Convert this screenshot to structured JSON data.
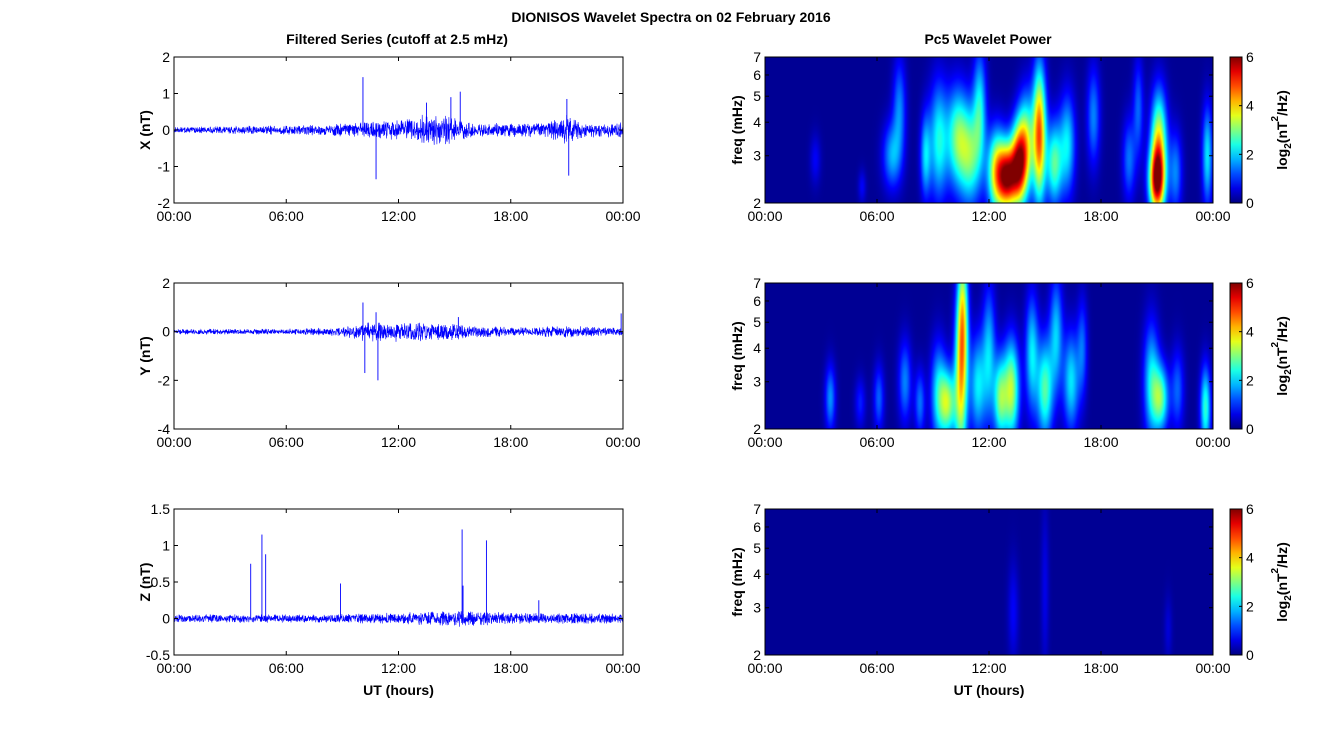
{
  "figure": {
    "title": "DIONISOS Wavelet Spectra on 02 February 2016",
    "left_title": "Filtered Series (cutoff at 2.5 mHz)",
    "right_title": "Pc5 Wavelet Power",
    "xlabel": "UT (hours)"
  },
  "chart_data": [
    {
      "id": "x-series",
      "type": "line",
      "ylabel": "X (nT)",
      "xlim": [
        0,
        24
      ],
      "ylim": [
        -2,
        2
      ],
      "xticks": [
        "00:00",
        "06:00",
        "12:00",
        "18:00",
        "00:00"
      ],
      "yticks": [
        "2",
        "1",
        "0",
        "-1",
        "-2"
      ],
      "color": "#0000ff",
      "series": [
        {
          "values_envelope": [
            [
              0,
              0.08
            ],
            [
              4,
              0.12
            ],
            [
              8,
              0.15
            ],
            [
              10,
              0.22
            ],
            [
              12,
              0.3
            ],
            [
              13.5,
              0.45
            ],
            [
              15,
              0.4
            ],
            [
              16,
              0.2
            ],
            [
              20,
              0.2
            ],
            [
              21,
              0.45
            ],
            [
              22,
              0.2
            ],
            [
              24,
              0.22
            ]
          ],
          "spikes": [
            [
              10.1,
              1.45
            ],
            [
              10.8,
              -1.35
            ],
            [
              13.5,
              0.75
            ],
            [
              14.8,
              0.9
            ],
            [
              15.3,
              1.05
            ],
            [
              21.0,
              0.85
            ],
            [
              21.1,
              -1.25
            ]
          ]
        }
      ]
    },
    {
      "id": "y-series",
      "type": "line",
      "ylabel": "Y (nT)",
      "xlim": [
        0,
        24
      ],
      "ylim": [
        -4,
        2
      ],
      "xticks": [
        "00:00",
        "06:00",
        "12:00",
        "18:00",
        "00:00"
      ],
      "yticks": [
        "2",
        "0",
        "-2",
        "-4"
      ],
      "color": "#0000ff",
      "series": [
        {
          "values_envelope": [
            [
              0,
              0.12
            ],
            [
              6,
              0.12
            ],
            [
              9,
              0.2
            ],
            [
              10.5,
              0.45
            ],
            [
              13.5,
              0.4
            ],
            [
              15,
              0.35
            ],
            [
              18,
              0.18
            ],
            [
              21,
              0.25
            ],
            [
              24,
              0.15
            ]
          ],
          "spikes": [
            [
              10.1,
              1.2
            ],
            [
              10.2,
              -1.7
            ],
            [
              10.8,
              0.8
            ],
            [
              10.9,
              -2.0
            ],
            [
              15.2,
              0.6
            ],
            [
              23.9,
              0.75
            ]
          ]
        }
      ]
    },
    {
      "id": "z-series",
      "type": "line",
      "ylabel": "Z (nT)",
      "xlim": [
        0,
        24
      ],
      "ylim": [
        -0.5,
        1.5
      ],
      "xticks": [
        "00:00",
        "06:00",
        "12:00",
        "18:00",
        "00:00"
      ],
      "yticks": [
        "1.5",
        "1",
        "0.5",
        "0",
        "-0.5"
      ],
      "xlabel": "UT (hours)",
      "color": "#0000ff",
      "series": [
        {
          "values_envelope": [
            [
              0,
              0.06
            ],
            [
              8,
              0.06
            ],
            [
              12,
              0.08
            ],
            [
              15,
              0.12
            ],
            [
              18,
              0.08
            ],
            [
              24,
              0.07
            ]
          ],
          "spikes": [
            [
              4.1,
              0.75
            ],
            [
              4.7,
              1.15
            ],
            [
              4.9,
              0.88
            ],
            [
              8.9,
              0.48
            ],
            [
              15.4,
              1.22
            ],
            [
              15.45,
              0.45
            ],
            [
              16.7,
              1.07
            ],
            [
              19.5,
              0.25
            ]
          ]
        }
      ]
    },
    {
      "id": "x-wavelet",
      "type": "heatmap",
      "ylabel": "freq (mHz)",
      "xlim": [
        0,
        24
      ],
      "ylim": [
        2,
        7
      ],
      "yscale": "log",
      "xticks": [
        "00:00",
        "06:00",
        "12:00",
        "18:00",
        "00:00"
      ],
      "yticks": [
        "7",
        "6",
        "5",
        "4",
        "3",
        "2"
      ],
      "colorbar": {
        "label": "log2(nT2/Hz)",
        "range": [
          0,
          6
        ],
        "ticks": [
          "6",
          "4",
          "2",
          "0"
        ],
        "colormap": "jet"
      },
      "blobs": [
        [
          2.7,
          2.9,
          0.2,
          0.15,
          0.6
        ],
        [
          5.2,
          2.3,
          0.15,
          0.1,
          0.6
        ],
        [
          6.8,
          3.0,
          0.35,
          0.2,
          1.6
        ],
        [
          7.2,
          4.5,
          0.25,
          0.3,
          1.4
        ],
        [
          8.6,
          3.0,
          0.2,
          0.25,
          1.8
        ],
        [
          9.3,
          3.4,
          0.35,
          0.35,
          2.2
        ],
        [
          10.3,
          3.5,
          0.4,
          0.3,
          2.6
        ],
        [
          11.0,
          3.0,
          0.4,
          0.3,
          2.5
        ],
        [
          11.5,
          4.5,
          0.25,
          0.35,
          2.0
        ],
        [
          12.4,
          2.6,
          0.35,
          0.25,
          3.5
        ],
        [
          13.0,
          2.5,
          0.35,
          0.2,
          5.0
        ],
        [
          13.6,
          2.8,
          0.3,
          0.25,
          4.6
        ],
        [
          14.0,
          3.3,
          0.3,
          0.3,
          2.8
        ],
        [
          14.7,
          3.6,
          0.25,
          0.4,
          4.6
        ],
        [
          15.5,
          2.8,
          0.3,
          0.25,
          2.6
        ],
        [
          16.2,
          3.3,
          0.3,
          0.3,
          2.0
        ],
        [
          17.6,
          4.2,
          0.25,
          0.3,
          1.4
        ],
        [
          19.5,
          2.9,
          0.25,
          0.25,
          1.3
        ],
        [
          20.0,
          4.5,
          0.2,
          0.3,
          1.2
        ],
        [
          21.0,
          2.4,
          0.3,
          0.2,
          5.0
        ],
        [
          21.1,
          3.4,
          0.3,
          0.3,
          3.4
        ],
        [
          22.0,
          2.6,
          0.25,
          0.25,
          1.4
        ],
        [
          23.7,
          3.0,
          0.2,
          0.3,
          2.0
        ]
      ]
    },
    {
      "id": "y-wavelet",
      "type": "heatmap",
      "ylabel": "freq (mHz)",
      "xlim": [
        0,
        24
      ],
      "ylim": [
        2,
        7
      ],
      "yscale": "log",
      "xticks": [
        "00:00",
        "06:00",
        "12:00",
        "18:00",
        "00:00"
      ],
      "yticks": [
        "7",
        "6",
        "5",
        "4",
        "3",
        "2"
      ],
      "colorbar": {
        "label": "log2(nT2/Hz)",
        "range": [
          0,
          6
        ],
        "ticks": [
          "6",
          "4",
          "2",
          "0"
        ],
        "colormap": "jet"
      },
      "blobs": [
        [
          3.5,
          2.6,
          0.2,
          0.2,
          1.5
        ],
        [
          5.1,
          2.5,
          0.2,
          0.15,
          0.8
        ],
        [
          6.1,
          2.6,
          0.2,
          0.2,
          1.2
        ],
        [
          7.5,
          3.0,
          0.25,
          0.25,
          1.4
        ],
        [
          8.3,
          2.5,
          0.2,
          0.2,
          1.3
        ],
        [
          9.3,
          2.7,
          0.3,
          0.3,
          2.0
        ],
        [
          9.8,
          2.5,
          0.3,
          0.2,
          2.8
        ],
        [
          10.5,
          3.0,
          0.25,
          0.5,
          3.4
        ],
        [
          10.6,
          5.5,
          0.2,
          0.4,
          2.6
        ],
        [
          11.4,
          2.9,
          0.3,
          0.3,
          2.0
        ],
        [
          12.0,
          3.8,
          0.25,
          0.4,
          1.8
        ],
        [
          12.6,
          2.6,
          0.25,
          0.25,
          2.6
        ],
        [
          13.2,
          2.8,
          0.3,
          0.3,
          3.2
        ],
        [
          14.3,
          3.8,
          0.25,
          0.35,
          2.0
        ],
        [
          15.0,
          2.8,
          0.3,
          0.3,
          2.6
        ],
        [
          15.6,
          4.5,
          0.25,
          0.35,
          1.8
        ],
        [
          16.4,
          3.0,
          0.3,
          0.3,
          2.0
        ],
        [
          17.0,
          4.0,
          0.2,
          0.3,
          1.2
        ],
        [
          20.7,
          3.0,
          0.3,
          0.35,
          2.0
        ],
        [
          21.2,
          2.6,
          0.3,
          0.2,
          2.6
        ],
        [
          22.1,
          2.8,
          0.25,
          0.25,
          1.2
        ],
        [
          23.6,
          2.4,
          0.2,
          0.25,
          2.4
        ]
      ]
    },
    {
      "id": "z-wavelet",
      "type": "heatmap",
      "ylabel": "freq (mHz)",
      "xlim": [
        0,
        24
      ],
      "ylim": [
        2,
        7
      ],
      "yscale": "log",
      "xticks": [
        "00:00",
        "06:00",
        "12:00",
        "18:00",
        "00:00"
      ],
      "yticks": [
        "7",
        "6",
        "5",
        "4",
        "3",
        "2"
      ],
      "xlabel": "UT (hours)",
      "colorbar": {
        "label": "log2(nT2/Hz)",
        "range": [
          0,
          6
        ],
        "ticks": [
          "6",
          "4",
          "2",
          "0"
        ],
        "colormap": "jet"
      },
      "blobs": [
        [
          13.3,
          2.9,
          0.2,
          0.3,
          0.6
        ],
        [
          15.0,
          3.5,
          0.15,
          0.5,
          0.5
        ],
        [
          21.6,
          2.5,
          0.15,
          0.2,
          0.4
        ]
      ]
    }
  ]
}
